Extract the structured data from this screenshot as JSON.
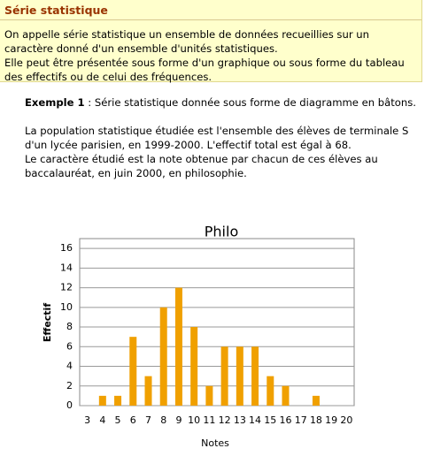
{
  "header": {
    "title": "Série statistique"
  },
  "intro": [
    "On appelle série statistique un ensemble de données recueillies sur un caractère donné d'un ensemble d'unités statistiques.",
    "Elle peut être présentée sous forme d'un graphique ou sous forme du tableau des effectifs ou de celui des fréquences."
  ],
  "example": {
    "label": "Exemple 1",
    "text": " : Série statistique donnée sous forme de diagramme en bâtons.",
    "paragraphs": [
      "La population statistique étudiée est l'ensemble des élèves de terminale S d'un lycée parisien, en 1999-2000. L'effectif total est égal à 68.",
      "Le caractère étudié est  la note obtenue par chacun de ces élèves au baccalauréat, en juin 2000, en philosophie."
    ]
  },
  "chart_data": {
    "type": "bar",
    "title": "Philo",
    "x_label": "Notes",
    "y_label": "Effectif",
    "categories": [
      "3",
      "4",
      "5",
      "6",
      "7",
      "8",
      "9",
      "10",
      "11",
      "12",
      "13",
      "14",
      "15",
      "16",
      "17",
      "18",
      "19",
      "20"
    ],
    "values": [
      0,
      1,
      1,
      7,
      3,
      10,
      12,
      8,
      2,
      6,
      6,
      6,
      3,
      2,
      0,
      1,
      0,
      0
    ],
    "color": "#f0a000",
    "ylim": [
      0,
      17
    ],
    "yticks": [
      0,
      2,
      4,
      6,
      8,
      10,
      12,
      14,
      16
    ],
    "grid": true
  }
}
